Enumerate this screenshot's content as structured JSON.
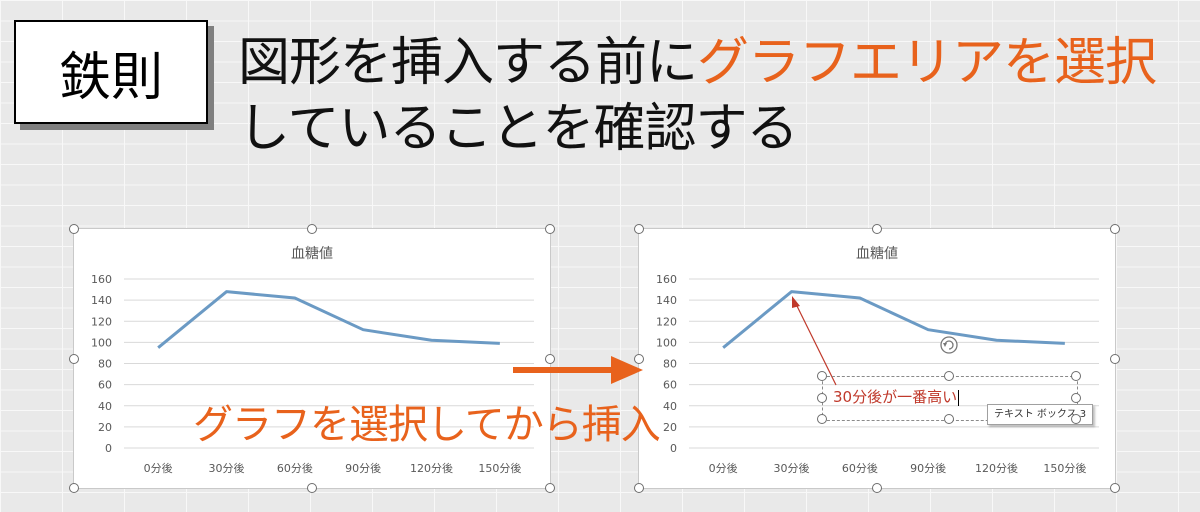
{
  "rule_badge": "鉄則",
  "headline": {
    "part1": "図形を挿入する前に",
    "accent": "グラフエリアを選択",
    "part2": "していることを確認する"
  },
  "overlay_caption": "グラフを選択してから挿入",
  "textbox": {
    "text": "30分後が一番高い"
  },
  "tooltip": "テキスト ボックス 3",
  "colors": {
    "accent": "#e8621c",
    "series": "#6b9ac4",
    "annotation": "#c0392b"
  },
  "chart_data": [
    {
      "type": "line",
      "title": "血糖値",
      "categories": [
        "0分後",
        "30分後",
        "60分後",
        "90分後",
        "120分後",
        "150分後"
      ],
      "values": [
        95,
        148,
        142,
        112,
        102,
        99
      ],
      "y_ticks": [
        "0",
        "20",
        "40",
        "60",
        "80",
        "100",
        "120",
        "140",
        "160"
      ],
      "ylim": [
        0,
        160
      ],
      "grid": true,
      "legend": "none"
    },
    {
      "type": "line",
      "title": "血糖値",
      "categories": [
        "0分後",
        "30分後",
        "60分後",
        "90分後",
        "120分後",
        "150分後"
      ],
      "values": [
        95,
        148,
        142,
        112,
        102,
        99
      ],
      "y_ticks": [
        "0",
        "20",
        "40",
        "60",
        "80",
        "100",
        "120",
        "140",
        "160"
      ],
      "ylim": [
        0,
        160
      ],
      "grid": true,
      "legend": "none"
    }
  ]
}
